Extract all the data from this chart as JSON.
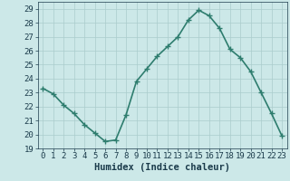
{
  "x": [
    0,
    1,
    2,
    3,
    4,
    5,
    6,
    7,
    8,
    9,
    10,
    11,
    12,
    13,
    14,
    15,
    16,
    17,
    18,
    19,
    20,
    21,
    22,
    23
  ],
  "y": [
    23.3,
    22.9,
    22.1,
    21.5,
    20.7,
    20.1,
    19.5,
    19.6,
    21.4,
    23.8,
    24.7,
    25.6,
    26.3,
    27.0,
    28.2,
    28.9,
    28.5,
    27.6,
    26.1,
    25.5,
    24.5,
    23.0,
    21.5,
    19.9
  ],
  "line_color": "#2e7d6e",
  "marker": "+",
  "marker_size": 4,
  "linewidth": 1.2,
  "bg_color": "#cce8e8",
  "grid_color": "#aacccc",
  "xlabel": "Humidex (Indice chaleur)",
  "xlim": [
    -0.5,
    23.5
  ],
  "ylim": [
    19,
    29.5
  ],
  "yticks": [
    19,
    20,
    21,
    22,
    23,
    24,
    25,
    26,
    27,
    28,
    29
  ],
  "xticks": [
    0,
    1,
    2,
    3,
    4,
    5,
    6,
    7,
    8,
    9,
    10,
    11,
    12,
    13,
    14,
    15,
    16,
    17,
    18,
    19,
    20,
    21,
    22,
    23
  ],
  "xlabel_fontsize": 7.5,
  "tick_fontsize": 6.5,
  "tick_color": "#1a3a4a",
  "label_color": "#1a3a4a",
  "axis_color": "#1a3a4a"
}
